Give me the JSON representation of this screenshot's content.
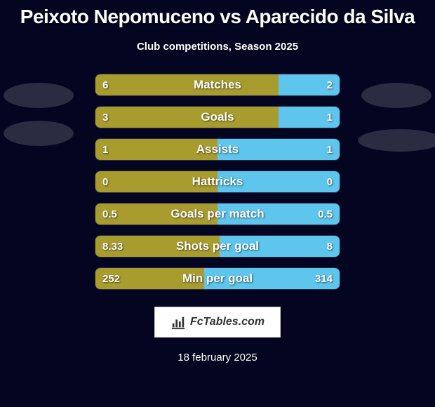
{
  "title": "Peixoto Nepomuceno vs Aparecido da Silva",
  "title_fontsize": 28,
  "subtitle": "Club competitions, Season 2025",
  "subtitle_fontsize": 15,
  "background_color": "#030521",
  "left_bar_color": "#a89c2f",
  "right_bar_color": "#5ec5ed",
  "decor_color": "#2a2c42",
  "bar_row_height": 32,
  "bar_row_gap": 14,
  "bar_row_radius": 8,
  "bars": [
    {
      "label": "Matches",
      "left_val": "6",
      "right_val": "2",
      "left_pct": 75,
      "right_pct": 25
    },
    {
      "label": "Goals",
      "left_val": "3",
      "right_val": "1",
      "left_pct": 75,
      "right_pct": 25
    },
    {
      "label": "Assists",
      "left_val": "1",
      "right_val": "1",
      "left_pct": 50,
      "right_pct": 50
    },
    {
      "label": "Hattricks",
      "left_val": "0",
      "right_val": "0",
      "left_pct": 50,
      "right_pct": 50
    },
    {
      "label": "Goals per match",
      "left_val": "0.5",
      "right_val": "0.5",
      "left_pct": 50,
      "right_pct": 50
    },
    {
      "label": "Shots per goal",
      "left_val": "8.33",
      "right_val": "8",
      "left_pct": 51,
      "right_pct": 49
    },
    {
      "label": "Min per goal",
      "left_val": "252",
      "right_val": "314",
      "left_pct": 44.5,
      "right_pct": 55.5
    }
  ],
  "logo_text": "FcTables.com",
  "date_text": "18 february 2025"
}
